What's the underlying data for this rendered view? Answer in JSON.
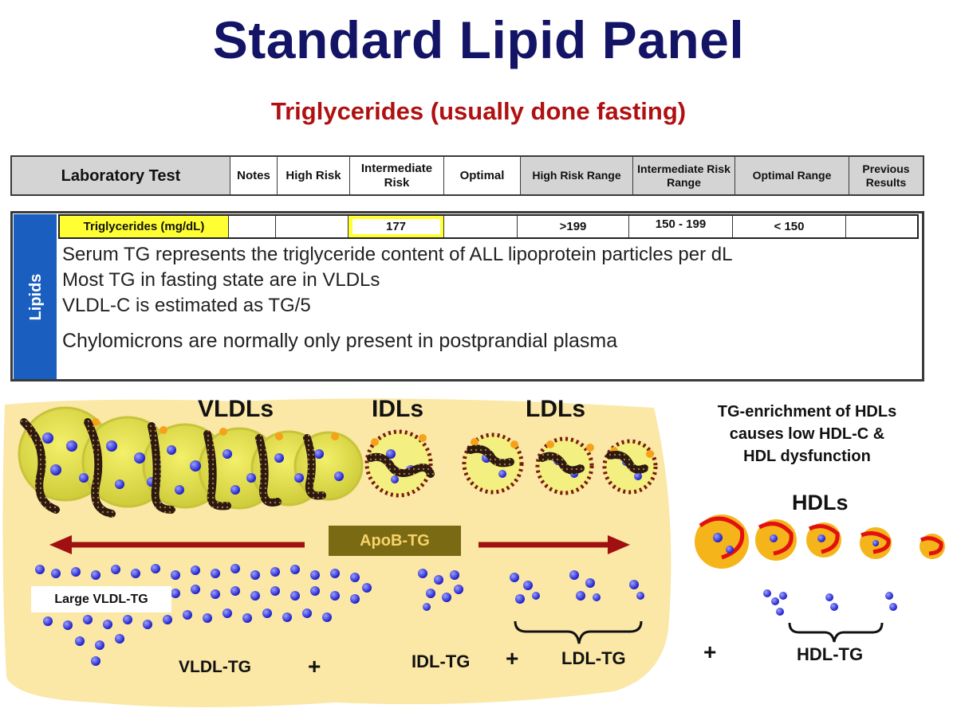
{
  "title": "Standard Lipid Panel",
  "subtitle": "Triglycerides (usually done fasting)",
  "header": {
    "laboratory_test": "Laboratory Test",
    "notes": "Notes",
    "high_risk": "High Risk",
    "intermediate_risk": "Intermediate Risk",
    "optimal": "Optimal",
    "high_risk_range": "High Risk Range",
    "intermediate_risk_range": "Intermediate Risk Range",
    "optimal_range": "Optimal Range",
    "previous_results": "Previous Results"
  },
  "lipids": {
    "side_label": "Lipids",
    "test_name": "Triglycerides (mg/dL)",
    "intermediate_value": "177",
    "high_risk_range": ">199",
    "intermediate_range": "150 - 199",
    "optimal_range": "< 150",
    "notes": [
      "Serum TG represents the triglyceride content of ALL lipoprotein particles per dL",
      "Most TG in fasting state are in VLDLs",
      "VLDL-C is estimated as TG/5",
      "Chylomicrons are normally only present in postprandial plasma"
    ]
  },
  "diagram": {
    "vldls": "VLDLs",
    "idls": "IDLs",
    "ldls": "LDLs",
    "apob_tg": "ApoB-TG",
    "large_vldl_tg": "Large VLDL-TG",
    "vldl_tg": "VLDL-TG",
    "plus": "+",
    "idl_tg": "IDL-TG",
    "ldl_tg": "LDL-TG",
    "hdl_caption_1": "TG-enrichment of HDLs",
    "hdl_caption_2": "causes low HDL-C &",
    "hdl_caption_3": "HDL dysfunction",
    "hdls": "HDLs",
    "hdl_tg": "HDL-TG"
  },
  "colors": {
    "title": "#141466",
    "subtitle": "#b01010",
    "lipids_sidebar": "#1a5fc0",
    "highlight": "#ffff33",
    "panel_bg": "#fbe7a6",
    "arrow": "#a01010",
    "apob_box": "#7a6a14"
  }
}
